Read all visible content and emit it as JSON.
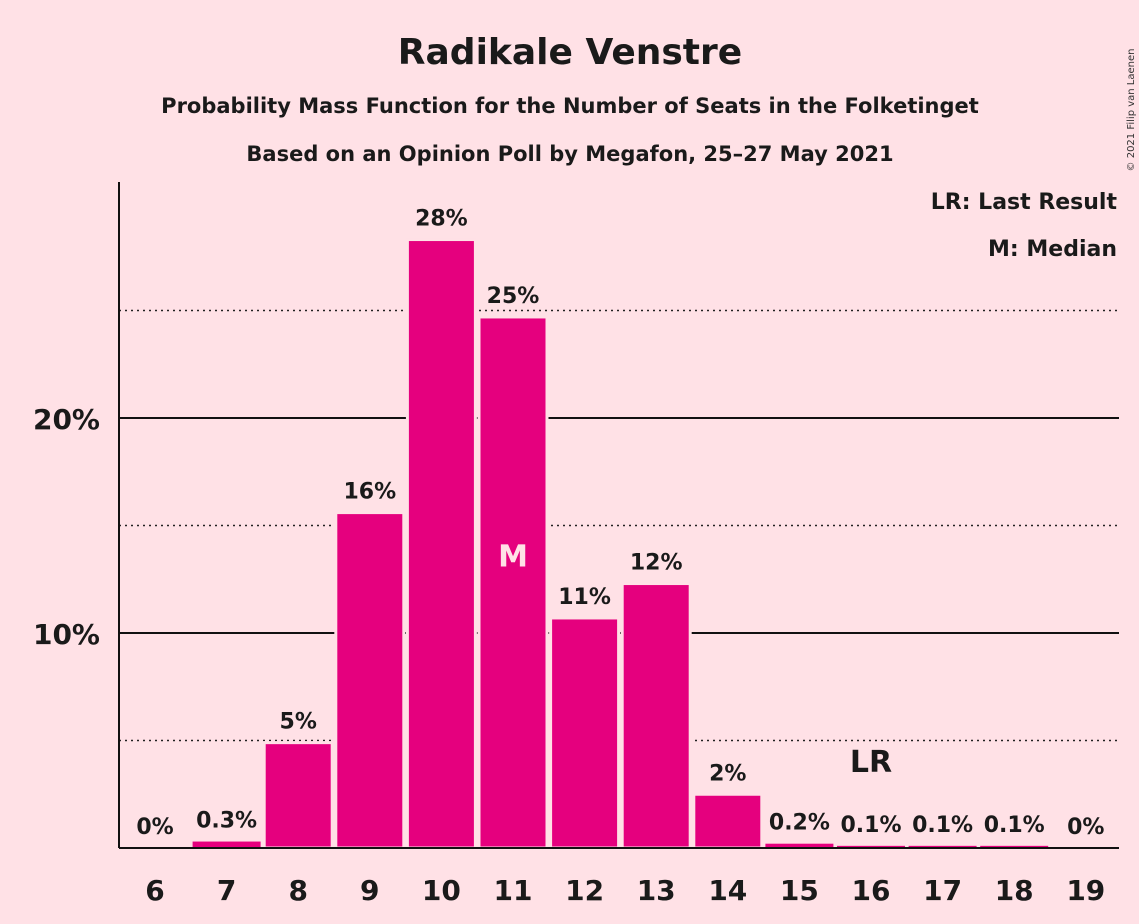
{
  "chart_data": {
    "type": "bar",
    "title": "Radikale Venstre",
    "subtitle_1": "Probability Mass Function for the Number of Seats in the Folketinget",
    "subtitle_2": "Based on an Opinion Poll by Megafon, 25–27 May 2021",
    "copyright": "© 2021 Filip van Laenen",
    "categories": [
      "6",
      "7",
      "8",
      "9",
      "10",
      "11",
      "12",
      "13",
      "14",
      "15",
      "16",
      "17",
      "18",
      "19"
    ],
    "values": [
      0,
      0.3,
      4.9,
      15.6,
      28.3,
      24.7,
      10.7,
      12.3,
      2.5,
      0.2,
      0.1,
      0.1,
      0.1,
      0
    ],
    "data_labels": [
      "0%",
      "0.3%",
      "5%",
      "16%",
      "28%",
      "25%",
      "11%",
      "12%",
      "2%",
      "0.2%",
      "0.1%",
      "0.1%",
      "0.1%",
      "0%"
    ],
    "ylim": [
      0,
      30
    ],
    "yticks": [
      {
        "value": 10,
        "label": "10%"
      },
      {
        "value": 20,
        "label": "20%"
      }
    ],
    "minor_gridlines": [
      5,
      15,
      25
    ],
    "median_category": "11",
    "median_marker": "M",
    "last_result_category": "16",
    "last_result_marker": "LR",
    "legend": [
      "LR: Last Result",
      "M: Median"
    ],
    "legend_position": "top-right",
    "colors": {
      "bar": "#E5007E",
      "background": "#FFE1E6",
      "median_text": "#FFE1E6"
    }
  }
}
